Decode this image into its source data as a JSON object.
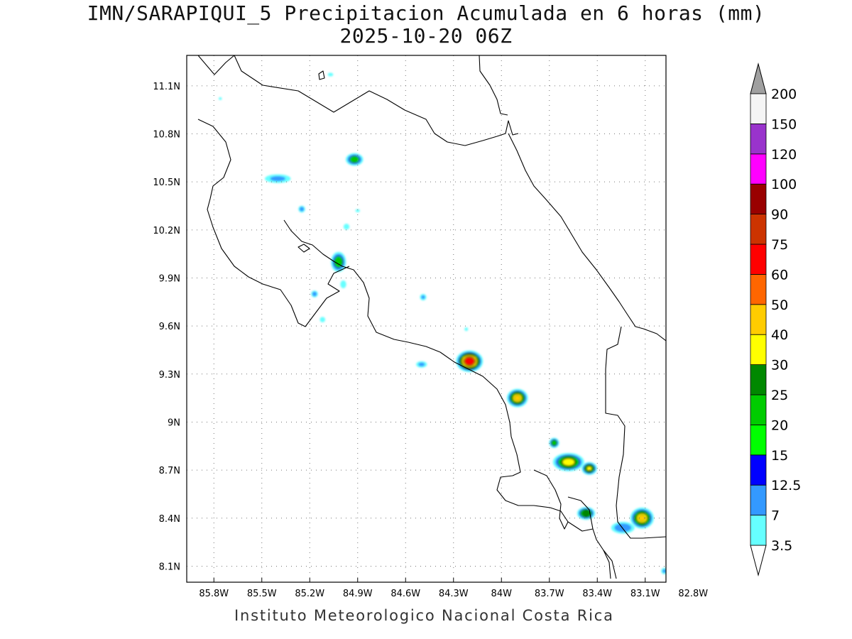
{
  "title": "IMN/SARAPIQUI_5 Precipitacion Acumulada en 6 horas (mm)",
  "subtitle": "2025-10-20 06Z",
  "footer": "Instituto Meteorologico Nacional Costa Rica",
  "lon_ticks": [
    "85.8W",
    "85.5W",
    "85.2W",
    "84.9W",
    "84.6W",
    "84.3W",
    "84W",
    "83.7W",
    "83.4W",
    "83.1W",
    "82.8W"
  ],
  "lon_values": [
    -85.8,
    -85.5,
    -85.2,
    -84.9,
    -84.6,
    -84.3,
    -84.0,
    -83.7,
    -83.4,
    -83.1,
    -82.8
  ],
  "lat_ticks": [
    "11.1N",
    "10.8N",
    "10.5N",
    "10.2N",
    "9.9N",
    "9.6N",
    "9.3N",
    "9N",
    "8.7N",
    "8.4N",
    "8.1N"
  ],
  "lat_values": [
    11.1,
    10.8,
    10.5,
    10.2,
    9.9,
    9.6,
    9.3,
    9.0,
    8.7,
    8.4,
    8.1
  ],
  "map_extent": {
    "lon_min": -85.97,
    "lon_max": -82.97,
    "lat_min": 8.0,
    "lat_max": 11.29
  },
  "colorbar": {
    "labels": [
      "3.5",
      "7",
      "12.5",
      "15",
      "20",
      "25",
      "30",
      "40",
      "50",
      "60",
      "75",
      "90",
      "100",
      "120",
      "150",
      "200"
    ],
    "colors": [
      "#66ffff",
      "#3399ff",
      "#0000ff",
      "#00ff00",
      "#00cc00",
      "#008800",
      "#ffff00",
      "#ffcc00",
      "#ff6600",
      "#ff0000",
      "#cc3300",
      "#990000",
      "#ff00ff",
      "#9933cc",
      "#f5f5f5"
    ],
    "over_color": "#a0a0a0"
  },
  "precip_cells": [
    {
      "lon": -84.2,
      "lat": 9.38,
      "peak": 70,
      "rx": 0.1,
      "ry": 0.08
    },
    {
      "lon": -83.9,
      "lat": 9.15,
      "peak": 40,
      "rx": 0.08,
      "ry": 0.07
    },
    {
      "lon": -83.58,
      "lat": 8.75,
      "peak": 35,
      "rx": 0.12,
      "ry": 0.07
    },
    {
      "lon": -83.45,
      "lat": 8.71,
      "peak": 30,
      "rx": 0.06,
      "ry": 0.05
    },
    {
      "lon": -83.12,
      "lat": 8.4,
      "peak": 40,
      "rx": 0.09,
      "ry": 0.08
    },
    {
      "lon": -83.47,
      "lat": 8.43,
      "peak": 28,
      "rx": 0.07,
      "ry": 0.05
    },
    {
      "lon": -83.67,
      "lat": 8.87,
      "peak": 22,
      "rx": 0.04,
      "ry": 0.04
    },
    {
      "lon": -85.02,
      "lat": 10.0,
      "peak": 22,
      "rx": 0.06,
      "ry": 0.08
    },
    {
      "lon": -84.92,
      "lat": 10.64,
      "peak": 20,
      "rx": 0.07,
      "ry": 0.05
    },
    {
      "lon": -85.4,
      "lat": 10.52,
      "peak": 8,
      "rx": 0.12,
      "ry": 0.04
    },
    {
      "lon": -85.25,
      "lat": 10.33,
      "peak": 10,
      "rx": 0.03,
      "ry": 0.03
    },
    {
      "lon": -85.17,
      "lat": 9.8,
      "peak": 10,
      "rx": 0.03,
      "ry": 0.03
    },
    {
      "lon": -84.49,
      "lat": 9.78,
      "peak": 8,
      "rx": 0.03,
      "ry": 0.03
    },
    {
      "lon": -84.5,
      "lat": 9.36,
      "peak": 8,
      "rx": 0.05,
      "ry": 0.03
    },
    {
      "lon": -83.24,
      "lat": 8.34,
      "peak": 12,
      "rx": 0.1,
      "ry": 0.05
    },
    {
      "lon": -82.98,
      "lat": 8.07,
      "peak": 8,
      "rx": 0.03,
      "ry": 0.03
    },
    {
      "lon": -84.97,
      "lat": 10.22,
      "peak": 6,
      "rx": 0.03,
      "ry": 0.03
    },
    {
      "lon": -84.99,
      "lat": 9.86,
      "peak": 6,
      "rx": 0.03,
      "ry": 0.04
    },
    {
      "lon": -85.07,
      "lat": 11.17,
      "peak": 5,
      "rx": 0.03,
      "ry": 0.02
    },
    {
      "lon": -85.76,
      "lat": 11.02,
      "peak": 4,
      "rx": 0.02,
      "ry": 0.015
    },
    {
      "lon": -84.9,
      "lat": 10.32,
      "peak": 4,
      "rx": 0.03,
      "ry": 0.02
    },
    {
      "lon": -84.22,
      "lat": 9.58,
      "peak": 5,
      "rx": 0.02,
      "ry": 0.02
    },
    {
      "lon": -85.12,
      "lat": 9.64,
      "peak": 5,
      "rx": 0.03,
      "ry": 0.03
    }
  ]
}
